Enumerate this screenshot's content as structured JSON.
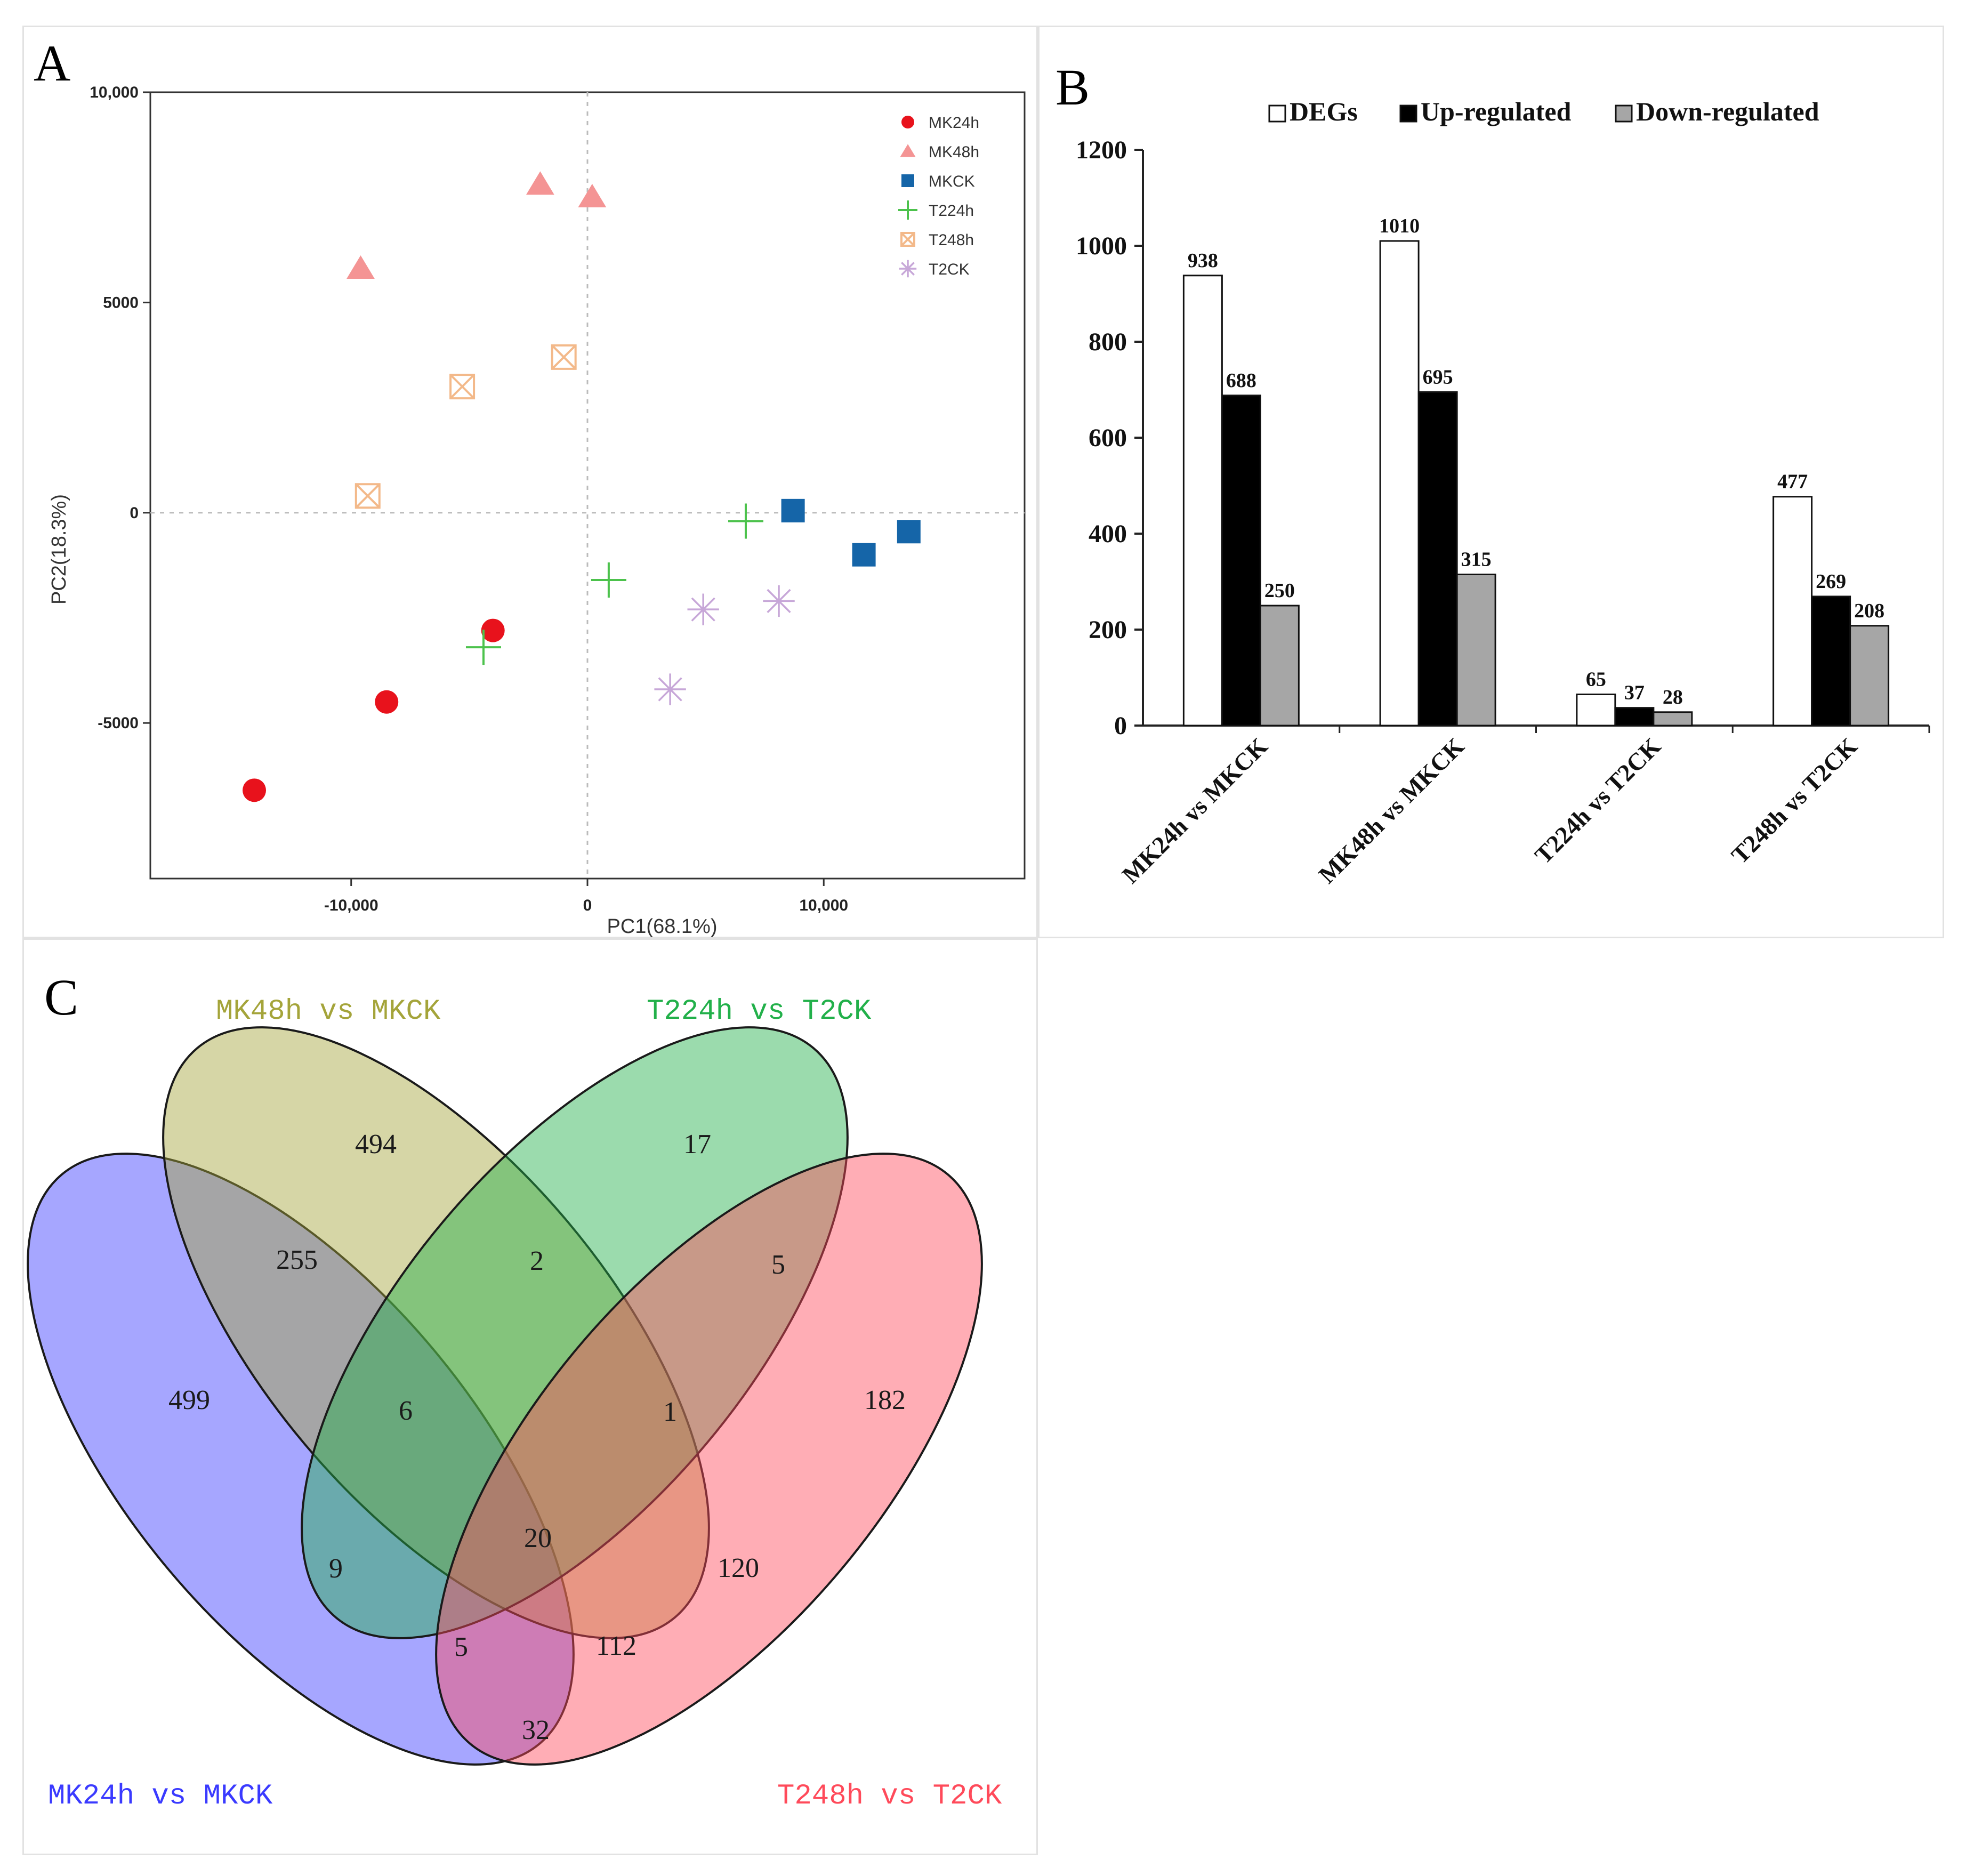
{
  "panels": {
    "a": "A",
    "b": "B",
    "c": "C"
  },
  "chart_data": [
    {
      "id": "A",
      "type": "scatter",
      "title": "",
      "xlabel": "PC1(68.1%)",
      "ylabel": "PC2(18.3%)",
      "xlim": [
        -18500,
        18500
      ],
      "ylim": [
        -8700,
        10000
      ],
      "xticks": [
        {
          "v": -10000,
          "label": "-10,000"
        },
        {
          "v": 0,
          "label": "0"
        },
        {
          "v": 10000,
          "label": "10,000"
        }
      ],
      "yticks": [
        {
          "v": 10000,
          "label": "10,000"
        },
        {
          "v": 5000,
          "label": "5000"
        },
        {
          "v": 0,
          "label": "0"
        },
        {
          "v": -5000,
          "label": "-5000"
        }
      ],
      "grid": false,
      "zero_lines": true,
      "legend_position": "top-right",
      "series": [
        {
          "name": "MK24h",
          "marker": "circle",
          "color": "#e8121c",
          "points": [
            [
              -14100,
              -6600
            ],
            [
              -8500,
              -4500
            ],
            [
              -4000,
              -2800
            ]
          ]
        },
        {
          "name": "MK48h",
          "marker": "triangle",
          "color": "#f49494",
          "points": [
            [
              -9600,
              5800
            ],
            [
              -2000,
              7800
            ],
            [
              200,
              7500
            ]
          ]
        },
        {
          "name": "MKCK",
          "marker": "square",
          "color": "#1565a8",
          "points": [
            [
              8700,
              50
            ],
            [
              11700,
              -1000
            ],
            [
              13600,
              -450
            ]
          ]
        },
        {
          "name": "T224h",
          "marker": "plus",
          "color": "#4cc24c",
          "points": [
            [
              -4400,
              -3200
            ],
            [
              900,
              -1600
            ],
            [
              6700,
              -200
            ]
          ]
        },
        {
          "name": "T248h",
          "marker": "boxx",
          "color": "#f3b98a",
          "points": [
            [
              -9300,
              400
            ],
            [
              -5300,
              3000
            ],
            [
              -1000,
              3700
            ]
          ]
        },
        {
          "name": "T2CK",
          "marker": "star",
          "color": "#c7a7d8",
          "points": [
            [
              3500,
              -4200
            ],
            [
              4900,
              -2300
            ],
            [
              8100,
              -2100
            ]
          ]
        }
      ]
    },
    {
      "id": "B",
      "type": "bar",
      "title": "",
      "xlabel": "",
      "ylabel": "",
      "ylim": [
        0,
        1200
      ],
      "yticks": [
        0,
        200,
        400,
        600,
        800,
        1000,
        1200
      ],
      "grid": false,
      "legend_position": "top",
      "categories": [
        "MK24h vs MKCK",
        "MK48h vs MKCK",
        "T224h vs T2CK",
        "T248h vs T2CK"
      ],
      "series": [
        {
          "name": "DEGs",
          "color": "#ffffff",
          "values": [
            938,
            1010,
            65,
            477
          ]
        },
        {
          "name": "Up-regulated",
          "color": "#000000",
          "values": [
            688,
            695,
            37,
            269
          ]
        },
        {
          "name": "Down-regulated",
          "color": "#a6a6a6",
          "values": [
            250,
            315,
            28,
            208
          ]
        }
      ]
    },
    {
      "id": "C",
      "type": "venn",
      "sets": [
        {
          "name": "MK24h vs MKCK",
          "color": "#3a3aff"
        },
        {
          "name": "MK48h vs MKCK",
          "color": "#a4a43a"
        },
        {
          "name": "T224h vs T2CK",
          "color": "#22b04a"
        },
        {
          "name": "T248h vs T2CK",
          "color": "#ff4a5a"
        }
      ],
      "regions": [
        {
          "sets": "A",
          "value": 499
        },
        {
          "sets": "B",
          "value": 494
        },
        {
          "sets": "C",
          "value": 17
        },
        {
          "sets": "D",
          "value": 182
        },
        {
          "sets": "AB",
          "value": 255
        },
        {
          "sets": "BC",
          "value": 2
        },
        {
          "sets": "CD",
          "value": 5
        },
        {
          "sets": "ABC",
          "value": 6
        },
        {
          "sets": "BCD",
          "value": 1
        },
        {
          "sets": "AC",
          "value": 9
        },
        {
          "sets": "BD",
          "value": 120
        },
        {
          "sets": "ABCD",
          "value": 20
        },
        {
          "sets": "ACD",
          "value": 5
        },
        {
          "sets": "ABD",
          "value": 112
        },
        {
          "sets": "AD",
          "value": 32
        }
      ]
    }
  ]
}
